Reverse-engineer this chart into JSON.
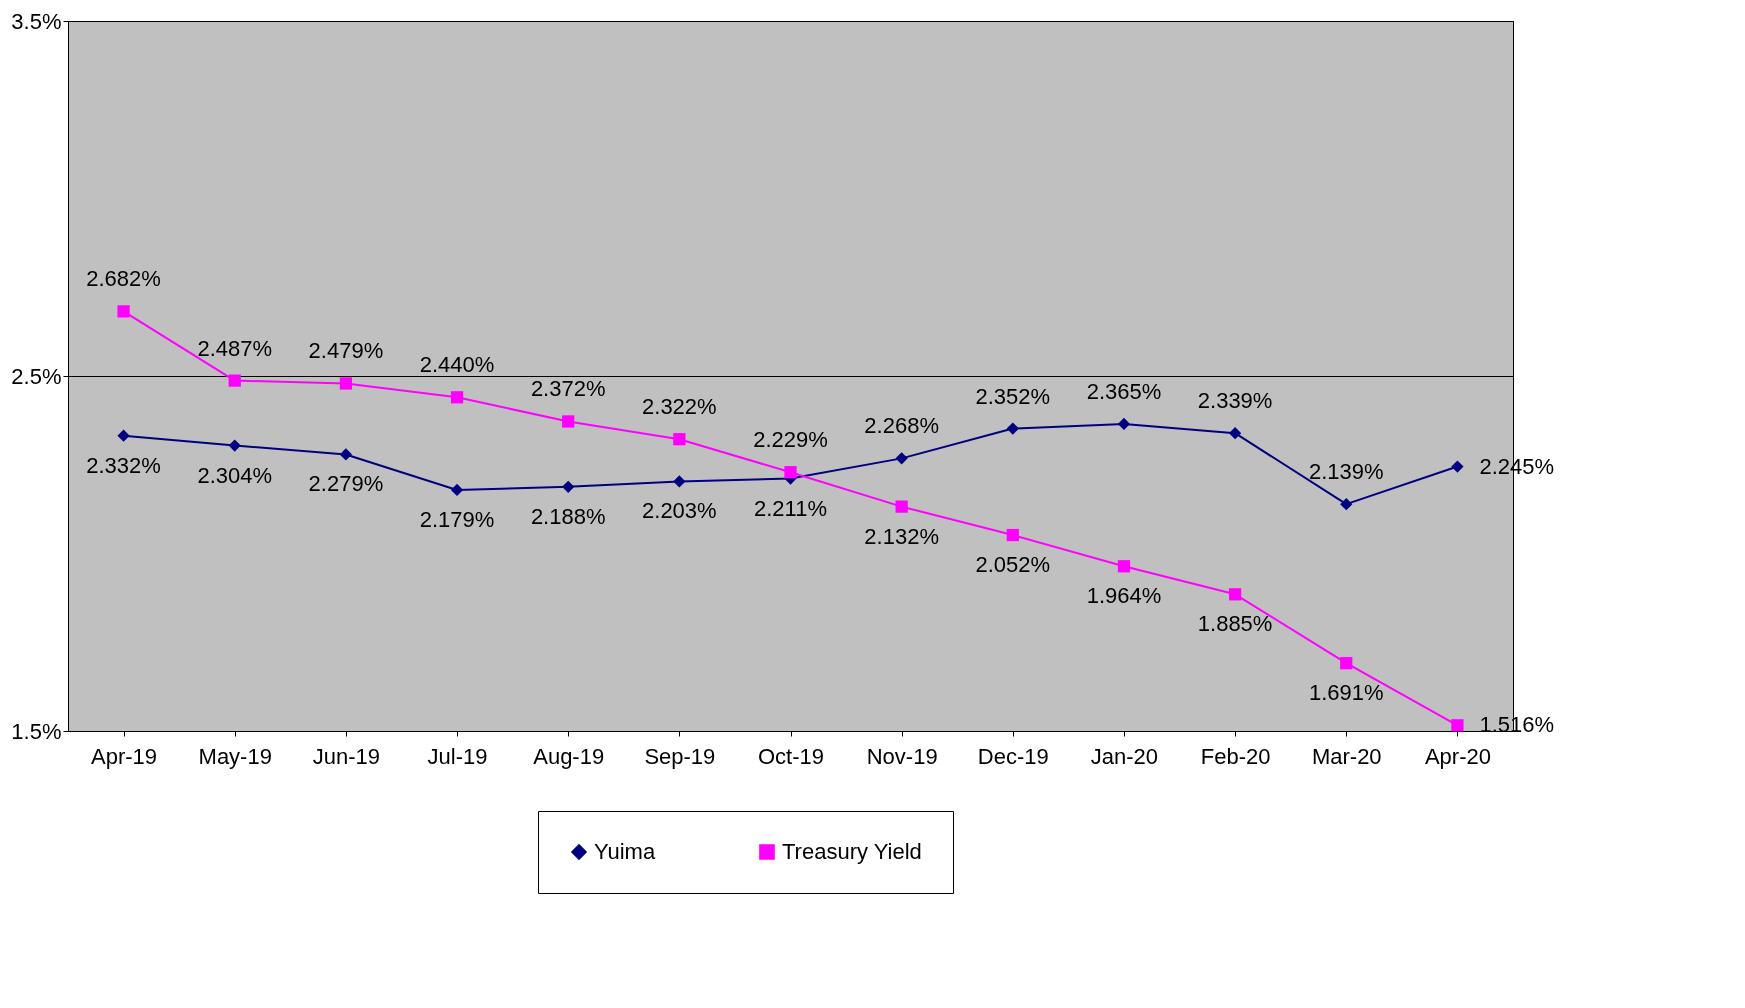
{
  "chart_data": {
    "type": "line",
    "categories": [
      "Apr-19",
      "May-19",
      "Jun-19",
      "Jul-19",
      "Aug-19",
      "Sep-19",
      "Oct-19",
      "Nov-19",
      "Dec-19",
      "Jan-20",
      "Feb-20",
      "Mar-20",
      "Apr-20"
    ],
    "series": [
      {
        "name": "Yuima",
        "color": "#000080",
        "marker": "diamond",
        "values": [
          2.332,
          2.304,
          2.279,
          2.179,
          2.188,
          2.203,
          2.211,
          2.268,
          2.352,
          2.365,
          2.339,
          2.139,
          2.245
        ],
        "value_labels": [
          "2.332%",
          "2.304%",
          "2.279%",
          "2.179%",
          "2.188%",
          "2.203%",
          "2.211%",
          "2.268%",
          "2.352%",
          "2.365%",
          "2.339%",
          "2.139%",
          "2.245%"
        ]
      },
      {
        "name": "Treasury Yield",
        "color": "#ff00ff",
        "marker": "square",
        "values": [
          2.682,
          2.487,
          2.479,
          2.44,
          2.372,
          2.322,
          2.229,
          2.132,
          2.052,
          1.964,
          1.885,
          1.691,
          1.516
        ],
        "value_labels": [
          "2.682%",
          "2.487%",
          "2.479%",
          "2.440%",
          "2.372%",
          "2.322%",
          "2.229%",
          "2.132%",
          "2.052%",
          "1.964%",
          "1.885%",
          "1.691%",
          "1.516%"
        ]
      }
    ],
    "ylim": [
      1.5,
      3.5
    ],
    "yticks": [
      {
        "value": 1.5,
        "label": "1.5%"
      },
      {
        "value": 2.5,
        "label": "2.5%"
      },
      {
        "value": 3.5,
        "label": "3.5%"
      }
    ],
    "grid": "y",
    "legend": "bottom"
  }
}
